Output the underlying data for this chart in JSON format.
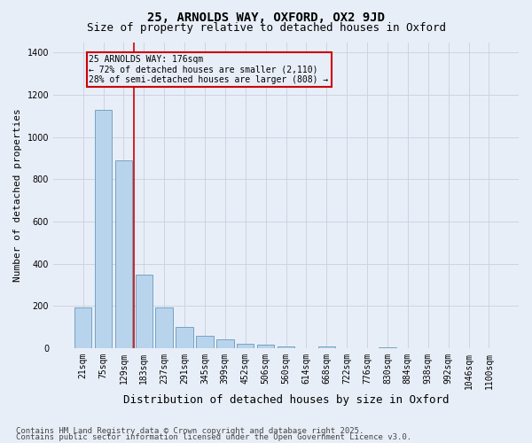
{
  "title1": "25, ARNOLDS WAY, OXFORD, OX2 9JD",
  "title2": "Size of property relative to detached houses in Oxford",
  "xlabel": "Distribution of detached houses by size in Oxford",
  "ylabel": "Number of detached properties",
  "categories": [
    "21sqm",
    "75sqm",
    "129sqm",
    "183sqm",
    "237sqm",
    "291sqm",
    "345sqm",
    "399sqm",
    "452sqm",
    "506sqm",
    "560sqm",
    "614sqm",
    "668sqm",
    "722sqm",
    "776sqm",
    "830sqm",
    "884sqm",
    "938sqm",
    "992sqm",
    "1046sqm",
    "1100sqm"
  ],
  "values": [
    195,
    1130,
    890,
    350,
    195,
    100,
    60,
    40,
    20,
    15,
    10,
    0,
    10,
    0,
    0,
    5,
    0,
    0,
    0,
    0,
    0
  ],
  "bar_color": "#b8d4ec",
  "bar_edge_color": "#6699bb",
  "bg_color": "#e8eef8",
  "grid_color": "#c8d0de",
  "annotation_text_line1": "25 ARNOLDS WAY: 176sqm",
  "annotation_text_line2": "← 72% of detached houses are smaller (2,110)",
  "annotation_text_line3": "28% of semi-detached houses are larger (808) →",
  "annotation_box_color": "#cc0000",
  "vline_x": 2.5,
  "vline_color": "#cc0000",
  "ylim": [
    0,
    1450
  ],
  "yticks": [
    0,
    200,
    400,
    600,
    800,
    1000,
    1200,
    1400
  ],
  "footer1": "Contains HM Land Registry data © Crown copyright and database right 2025.",
  "footer2": "Contains public sector information licensed under the Open Government Licence v3.0.",
  "title1_fontsize": 10,
  "title2_fontsize": 9,
  "tick_fontsize": 7,
  "ylabel_fontsize": 8,
  "xlabel_fontsize": 9,
  "footer_fontsize": 6.5
}
